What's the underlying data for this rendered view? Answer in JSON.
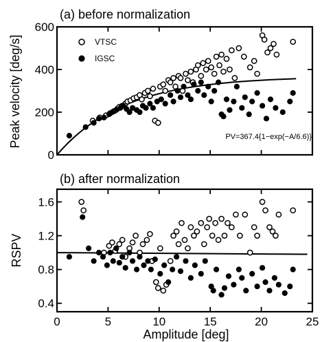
{
  "chart_data": [
    {
      "id": "a",
      "type": "scatter",
      "title": "(a) before normalization",
      "xlabel": "",
      "ylabel": "Peak velocity [deg/s]",
      "xlim": [
        0,
        25
      ],
      "ylim": [
        0,
        600
      ],
      "xticks": [
        0,
        5,
        10,
        15,
        20,
        25
      ],
      "yticks": [
        0,
        200,
        400,
        600
      ],
      "ytick_labels": [
        "0",
        "200",
        "400",
        "600"
      ],
      "legend": {
        "placement": "top-left",
        "entries": [
          "VTSC",
          "IGSC"
        ]
      },
      "annotation": "PV=367.4{1−exp(−A/6.6)}",
      "fit": {
        "label": "PV=367.4{1−exp(−A/6.6)}",
        "vmax": 367.4,
        "tau": 6.6,
        "x_range": [
          0,
          23.4
        ]
      },
      "series": [
        {
          "name": "VTSC",
          "marker": "open-circle",
          "points": [
            [
              3.5,
              160
            ],
            [
              4.2,
              175
            ],
            [
              4.8,
              185
            ],
            [
              5.2,
              195
            ],
            [
              5.6,
              205
            ],
            [
              5.9,
              215
            ],
            [
              6.1,
              225
            ],
            [
              6.4,
              230
            ],
            [
              6.7,
              240
            ],
            [
              6.9,
              250
            ],
            [
              7.2,
              255
            ],
            [
              7.5,
              265
            ],
            [
              7.8,
              270
            ],
            [
              8.1,
              280
            ],
            [
              8.3,
              260
            ],
            [
              8.6,
              290
            ],
            [
              8.9,
              300
            ],
            [
              9.1,
              275
            ],
            [
              9.4,
              310
            ],
            [
              9.6,
              160
            ],
            [
              9.9,
              150
            ],
            [
              10.1,
              320
            ],
            [
              10.4,
              330
            ],
            [
              10.6,
              300
            ],
            [
              10.9,
              350
            ],
            [
              11.1,
              340
            ],
            [
              11.4,
              360
            ],
            [
              11.6,
              320
            ],
            [
              11.9,
              370
            ],
            [
              12.1,
              360
            ],
            [
              12.3,
              300
            ],
            [
              12.6,
              380
            ],
            [
              12.8,
              350
            ],
            [
              13.1,
              390
            ],
            [
              13.3,
              340
            ],
            [
              13.6,
              400
            ],
            [
              13.8,
              420
            ],
            [
              14.1,
              370
            ],
            [
              14.3,
              430
            ],
            [
              14.6,
              400
            ],
            [
              14.8,
              440
            ],
            [
              15.1,
              410
            ],
            [
              15.4,
              380
            ],
            [
              15.6,
              460
            ],
            [
              15.9,
              420
            ],
            [
              16.1,
              470
            ],
            [
              16.3,
              390
            ],
            [
              16.6,
              450
            ],
            [
              16.9,
              400
            ],
            [
              17.1,
              490
            ],
            [
              17.4,
              360
            ],
            [
              17.8,
              500
            ],
            [
              18.3,
              460
            ],
            [
              18.9,
              410
            ],
            [
              19.3,
              440
            ],
            [
              19.6,
              380
            ],
            [
              20.1,
              560
            ],
            [
              20.3,
              540
            ],
            [
              20.6,
              480
            ],
            [
              20.9,
              500
            ],
            [
              21.2,
              520
            ],
            [
              21.5,
              470
            ],
            [
              23.1,
              530
            ]
          ]
        },
        {
          "name": "IGSC",
          "marker": "filled-circle",
          "points": [
            [
              1.2,
              90
            ],
            [
              2.8,
              130
            ],
            [
              3.6,
              150
            ],
            [
              4.1,
              170
            ],
            [
              4.6,
              175
            ],
            [
              5.1,
              190
            ],
            [
              5.4,
              200
            ],
            [
              5.8,
              210
            ],
            [
              6.2,
              220
            ],
            [
              6.5,
              230
            ],
            [
              6.8,
              215
            ],
            [
              7.1,
              200
            ],
            [
              7.4,
              220
            ],
            [
              7.8,
              210
            ],
            [
              8.1,
              200
            ],
            [
              8.4,
              230
            ],
            [
              8.7,
              220
            ],
            [
              9.1,
              240
            ],
            [
              9.4,
              220
            ],
            [
              9.8,
              250
            ],
            [
              10.2,
              260
            ],
            [
              10.6,
              240
            ],
            [
              11.1,
              280
            ],
            [
              11.4,
              250
            ],
            [
              11.8,
              300
            ],
            [
              12.1,
              270
            ],
            [
              12.4,
              320
            ],
            [
              12.8,
              280
            ],
            [
              13.1,
              260
            ],
            [
              13.4,
              330
            ],
            [
              13.8,
              300
            ],
            [
              14.1,
              340
            ],
            [
              14.4,
              280
            ],
            [
              14.8,
              320
            ],
            [
              15.1,
              250
            ],
            [
              15.4,
              300
            ],
            [
              15.8,
              340
            ],
            [
              16.1,
              190
            ],
            [
              16.3,
              180
            ],
            [
              16.6,
              260
            ],
            [
              16.9,
              210
            ],
            [
              17.3,
              250
            ],
            [
              17.6,
              320
            ],
            [
              18.1,
              220
            ],
            [
              18.4,
              270
            ],
            [
              18.8,
              190
            ],
            [
              19.1,
              250
            ],
            [
              19.6,
              290
            ],
            [
              20.1,
              230
            ],
            [
              20.5,
              170
            ],
            [
              20.9,
              260
            ],
            [
              21.4,
              220
            ],
            [
              22.1,
              200
            ],
            [
              22.8,
              250
            ],
            [
              23.1,
              290
            ]
          ]
        }
      ]
    },
    {
      "id": "b",
      "type": "scatter",
      "title": "(b) after normalization",
      "xlabel": "Amplitude [deg]",
      "ylabel": "RSPV",
      "xlim": [
        0,
        25
      ],
      "ylim": [
        0.3,
        1.75
      ],
      "xticks": [
        0,
        5,
        10,
        15,
        20,
        25
      ],
      "xtick_labels": [
        "0",
        "5",
        "10",
        "15",
        "20",
        "25"
      ],
      "yticks": [
        0.4,
        0.8,
        1.2,
        1.6
      ],
      "ytick_labels": [
        "0.4",
        "0.8",
        "1.2",
        "1.6"
      ],
      "reference_line": {
        "y_start": 1.0,
        "y_end": 0.98,
        "x_range": [
          0,
          24.5
        ]
      },
      "series": [
        {
          "name": "VTSC",
          "marker": "open-circle",
          "points": [
            [
              2.4,
              1.6
            ],
            [
              2.6,
              1.5
            ],
            [
              4.6,
              1.0
            ],
            [
              5.1,
              1.08
            ],
            [
              5.4,
              1.12
            ],
            [
              5.7,
              1.02
            ],
            [
              6.1,
              1.1
            ],
            [
              6.4,
              1.15
            ],
            [
              6.7,
              0.95
            ],
            [
              7.1,
              1.05
            ],
            [
              7.4,
              1.12
            ],
            [
              7.7,
              1.2
            ],
            [
              8.1,
              1.0
            ],
            [
              8.4,
              1.1
            ],
            [
              8.8,
              1.15
            ],
            [
              9.1,
              1.22
            ],
            [
              9.3,
              0.9
            ],
            [
              9.7,
              0.65
            ],
            [
              9.9,
              0.58
            ],
            [
              10.1,
              1.05
            ],
            [
              10.4,
              0.55
            ],
            [
              10.7,
              0.62
            ],
            [
              11.1,
              0.9
            ],
            [
              11.4,
              1.2
            ],
            [
              11.7,
              1.25
            ],
            [
              11.9,
              1.1
            ],
            [
              12.2,
              1.35
            ],
            [
              12.5,
              1.15
            ],
            [
              12.8,
              1.05
            ],
            [
              13.1,
              1.3
            ],
            [
              13.4,
              1.2
            ],
            [
              13.7,
              1.25
            ],
            [
              14.1,
              1.35
            ],
            [
              14.4,
              1.1
            ],
            [
              14.7,
              1.3
            ],
            [
              14.9,
              1.4
            ],
            [
              15.2,
              1.2
            ],
            [
              15.5,
              1.35
            ],
            [
              15.8,
              1.15
            ],
            [
              16.1,
              1.4
            ],
            [
              16.4,
              1.2
            ],
            [
              16.7,
              1.35
            ],
            [
              17.1,
              1.3
            ],
            [
              17.5,
              1.45
            ],
            [
              17.9,
              1.2
            ],
            [
              18.4,
              1.45
            ],
            [
              18.9,
              1.0
            ],
            [
              19.3,
              1.3
            ],
            [
              19.6,
              1.2
            ],
            [
              20.1,
              1.6
            ],
            [
              20.4,
              1.5
            ],
            [
              20.8,
              1.3
            ],
            [
              21.1,
              1.25
            ],
            [
              21.4,
              1.2
            ],
            [
              21.7,
              1.45
            ],
            [
              23.1,
              1.5
            ]
          ]
        },
        {
          "name": "IGSC",
          "marker": "filled-circle",
          "points": [
            [
              2.5,
              1.42
            ],
            [
              1.2,
              0.95
            ],
            [
              3.1,
              1.05
            ],
            [
              3.6,
              0.9
            ],
            [
              4.1,
              1.0
            ],
            [
              4.5,
              0.95
            ],
            [
              4.9,
              0.85
            ],
            [
              5.2,
              1.0
            ],
            [
              5.5,
              0.9
            ],
            [
              5.8,
              1.05
            ],
            [
              6.1,
              0.88
            ],
            [
              6.4,
              0.95
            ],
            [
              6.7,
              0.82
            ],
            [
              7.1,
              1.0
            ],
            [
              7.4,
              0.9
            ],
            [
              7.8,
              0.8
            ],
            [
              8.1,
              0.95
            ],
            [
              8.5,
              0.85
            ],
            [
              8.9,
              0.9
            ],
            [
              9.2,
              0.8
            ],
            [
              9.6,
              0.92
            ],
            [
              10.1,
              0.75
            ],
            [
              10.5,
              0.85
            ],
            [
              10.9,
              0.65
            ],
            [
              11.3,
              0.8
            ],
            [
              11.7,
              0.95
            ],
            [
              12.1,
              0.78
            ],
            [
              12.6,
              0.9
            ],
            [
              13.1,
              0.7
            ],
            [
              13.5,
              0.85
            ],
            [
              14.1,
              0.75
            ],
            [
              14.5,
              0.9
            ],
            [
              15.1,
              0.6
            ],
            [
              15.3,
              0.55
            ],
            [
              15.6,
              0.8
            ],
            [
              16.1,
              0.5
            ],
            [
              16.4,
              0.58
            ],
            [
              16.8,
              0.72
            ],
            [
              17.3,
              0.62
            ],
            [
              17.8,
              0.8
            ],
            [
              18.1,
              0.7
            ],
            [
              18.5,
              0.55
            ],
            [
              19.1,
              0.75
            ],
            [
              19.6,
              0.6
            ],
            [
              20.1,
              0.82
            ],
            [
              20.4,
              0.65
            ],
            [
              20.8,
              0.55
            ],
            [
              21.3,
              0.7
            ],
            [
              21.7,
              0.62
            ],
            [
              22.3,
              0.52
            ],
            [
              22.8,
              0.6
            ],
            [
              23.1,
              0.8
            ]
          ]
        }
      ]
    }
  ]
}
